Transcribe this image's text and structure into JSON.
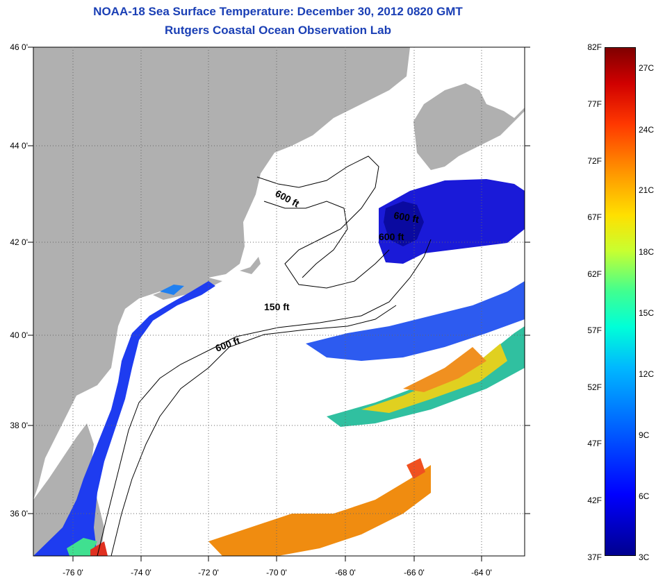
{
  "title": {
    "line1": "NOAA-18 Sea Surface Temperature:  December 30, 2012 0820 GMT",
    "line2": "Rutgers Coastal Ocean Observation Lab"
  },
  "axes": {
    "lat_labels": [
      "46 0'",
      "44 0'",
      "42 0'",
      "40 0'",
      "38 0'",
      "36 0'"
    ],
    "lon_labels": [
      "-76 0'",
      "-74 0'",
      "-72 0'",
      "-70 0'",
      "-68 0'",
      "-66 0'",
      "-64 0'"
    ],
    "lat_range": [
      35,
      46
    ],
    "lon_range": [
      -77,
      -63
    ]
  },
  "contours": {
    "label_600_a": "600 ft",
    "label_600_b": "600 ft",
    "label_600_c": "600 ft",
    "label_150": "150 ft",
    "label_600_d": "600 ft"
  },
  "colorbar": {
    "fahrenheit": [
      "82F",
      "77F",
      "72F",
      "67F",
      "62F",
      "57F",
      "52F",
      "47F",
      "42F",
      "37F"
    ],
    "celsius": [
      "27C",
      "24C",
      "21C",
      "18C",
      "15C",
      "12C",
      "9C",
      "6C",
      "3C"
    ]
  },
  "colors": {
    "land": "#b0b0b0",
    "no_data": "#ffffff",
    "title": "#1a3fb5",
    "cold": "#0000c8",
    "warm": "#ff8c00"
  }
}
